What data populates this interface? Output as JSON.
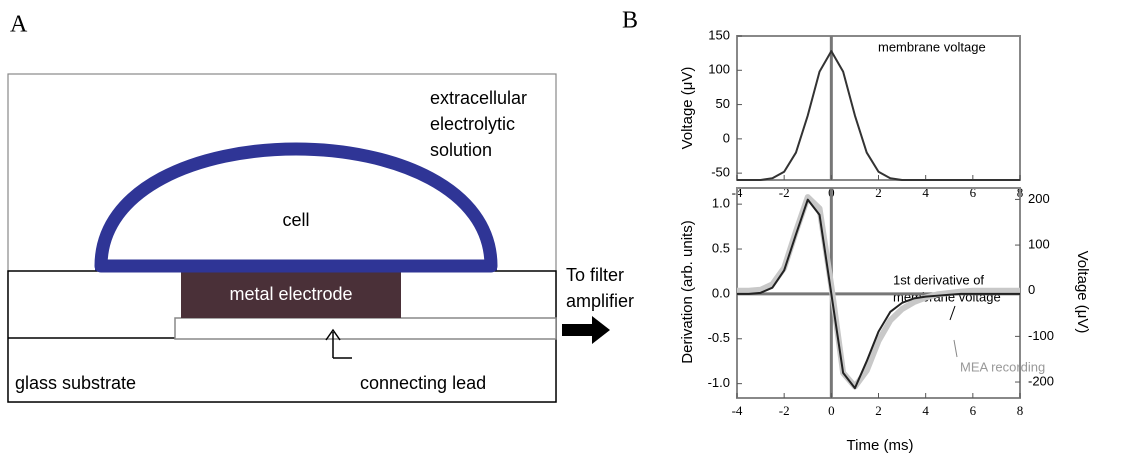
{
  "panel_labels": [
    "A",
    "B"
  ],
  "diagram": {
    "solution": [
      "extracellular",
      "electrolytic",
      "solution"
    ],
    "cell": "cell",
    "electrode": "metal electrode",
    "substrate": "glass substrate",
    "lead": "connecting lead",
    "output": [
      "To filter",
      "amplifier"
    ]
  },
  "chart_data": [
    {
      "type": "line",
      "ylabel": "Voltage (μV)",
      "x": [
        -4,
        -3.5,
        -3,
        -2.5,
        -2,
        -1.5,
        -1,
        -0.5,
        0,
        0.5,
        1,
        1.5,
        2,
        2.5,
        3,
        3.5,
        4,
        4.5,
        5,
        5.5,
        6,
        6.5,
        7,
        7.5,
        8
      ],
      "series": [
        {
          "color": "#333333",
          "values": [
            -60,
            -60,
            -60,
            -57.5,
            -48,
            -20,
            34,
            98,
            128,
            98,
            34,
            -20,
            -48,
            -57.5,
            -60,
            -60,
            -60,
            -60,
            -60,
            -60,
            -60,
            -60,
            -60,
            -60,
            -60
          ]
        }
      ],
      "annotations": [
        [
          "membrane voltage"
        ]
      ],
      "xlim": [
        -4,
        8
      ],
      "xticks": [
        -4,
        -2,
        0,
        2,
        4,
        6,
        8
      ],
      "ylim": [
        -60,
        150
      ],
      "yticks": [
        -50,
        0,
        50,
        100,
        150
      ]
    },
    {
      "type": "line",
      "xlabel": "Time (ms)",
      "ylabel": "Derivation (arb. units)",
      "y2label": "Voltage (μV)",
      "x": [
        -4,
        -3.5,
        -3,
        -2.5,
        -2,
        -1.5,
        -1,
        -0.5,
        0,
        0.5,
        1,
        1.5,
        2,
        2.5,
        3,
        3.5,
        4,
        4.5,
        5,
        5.5,
        6,
        6.5,
        7,
        7.5,
        8
      ],
      "series": [
        {
          "color": "#c8c8c8",
          "axis": "y2",
          "values": [
            0,
            0,
            2,
            14,
            50,
            130,
            205,
            180,
            10,
            -180,
            -210,
            -175,
            -110,
            -65,
            -40,
            -25,
            -15,
            -8,
            -5,
            -2,
            0,
            0,
            0,
            0,
            0
          ]
        },
        {
          "color": "#222222",
          "values": [
            0,
            0,
            0.012,
            0.069,
            0.263,
            0.663,
            1.05,
            0.88,
            0,
            -0.88,
            -1.05,
            -0.75,
            -0.42,
            -0.2,
            -0.1,
            -0.05,
            -0.03,
            -0.02,
            -0.01,
            0,
            0,
            0,
            0,
            0,
            0
          ]
        }
      ],
      "annotations": [
        [
          "1st  derivative of",
          "membrane voltage"
        ],
        [
          "MEA recording"
        ]
      ],
      "xlim": [
        -4,
        8
      ],
      "xticks": [
        -4,
        -2,
        0,
        2,
        4,
        6,
        8
      ],
      "ylim": [
        -1.16,
        1.18
      ],
      "yticks": [
        {
          "value": 1,
          "label": "1.0"
        },
        0.5,
        {
          "value": 0,
          "label": "0.0"
        },
        -0.5,
        {
          "value": -1,
          "label": "-1.0"
        }
      ],
      "y2lim": [
        -235,
        225
      ],
      "y2ticks": [
        200,
        100,
        0,
        -100,
        -200
      ]
    }
  ]
}
